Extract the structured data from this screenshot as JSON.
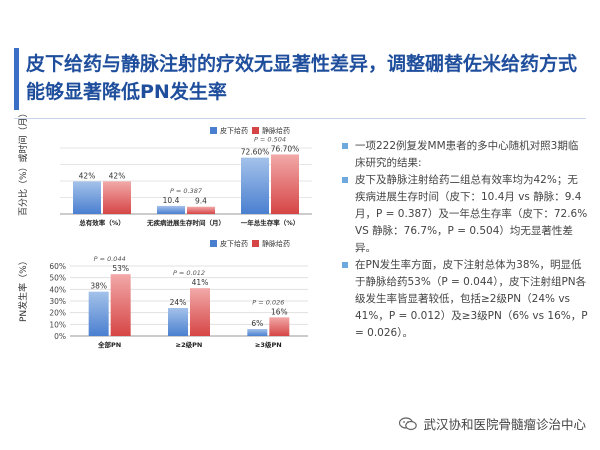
{
  "slide": {
    "title": "皮下给药与静脉注射的疗效无显著性差异，调整硼替佐米给药方式能够显著降低PN发生率",
    "bullets": [
      "一项222例复发MM患者的多中心随机对照3期临床研究的结果:",
      "皮下及静脉注射给药二组总有效率均为42%；无疾病进展生存时间（皮下：10.4月 vs 静脉：9.4月，P = 0.387）及一年总生存率（皮下：72.6% VS 静脉：76.7%，P = 0.504）均无显著性差异。",
      "在PN发生率方面，皮下注射总体为38%，明显低于静脉给药53%（P = 0.044），皮下注射组PN各级发生率皆显著较低，包括≥2级PN（24% vs 41%，P = 0.012）及≥3级PN（6% vs 16%，P = 0.026）。"
    ],
    "watermark": "武汉协和医院骨髓瘤诊治中心"
  },
  "colors": {
    "sc_light": "#a4c2ea",
    "sc_dark": "#4a7fd0",
    "iv_light": "#f2a9a9",
    "iv_dark": "#d64545",
    "title": "#1f4e9c"
  },
  "chart_data": [
    {
      "type": "bar",
      "ylabel": "百分比（%）或时间（月）",
      "legend_position": "top-right",
      "series": [
        {
          "name": "皮下给药",
          "values": [
            42,
            10.4,
            72.6
          ],
          "labels": [
            "42%",
            "10.4",
            "72.60%"
          ]
        },
        {
          "name": "静脉给药",
          "values": [
            42,
            9.4,
            76.7
          ],
          "labels": [
            "42%",
            "9.4",
            "76.70%"
          ]
        }
      ],
      "categories": [
        "总有效率（%）",
        "无疾病进展生存时间（月）",
        "一年总生存率（%）"
      ],
      "annotations": [
        "",
        "P = 0.387",
        "P = 0.504"
      ],
      "ylim": [
        0,
        85
      ]
    },
    {
      "type": "bar",
      "ylabel": "PN发生率（%）",
      "legend_position": "top-right",
      "series": [
        {
          "name": "皮下给药",
          "values": [
            38,
            24,
            6
          ],
          "labels": [
            "38%",
            "24%",
            "6%"
          ]
        },
        {
          "name": "静脉给药",
          "values": [
            53,
            41,
            16
          ],
          "labels": [
            "53%",
            "41%",
            "16%"
          ]
        }
      ],
      "categories": [
        "全部PN",
        "≥2级PN",
        "≥3级PN"
      ],
      "annotations": [
        "P = 0.044",
        "P = 0.012",
        "P = 0.026"
      ],
      "yticks": [
        "0%",
        "10%",
        "20%",
        "30%",
        "40%",
        "50%",
        "60%"
      ],
      "ylim": [
        0,
        60
      ]
    }
  ]
}
